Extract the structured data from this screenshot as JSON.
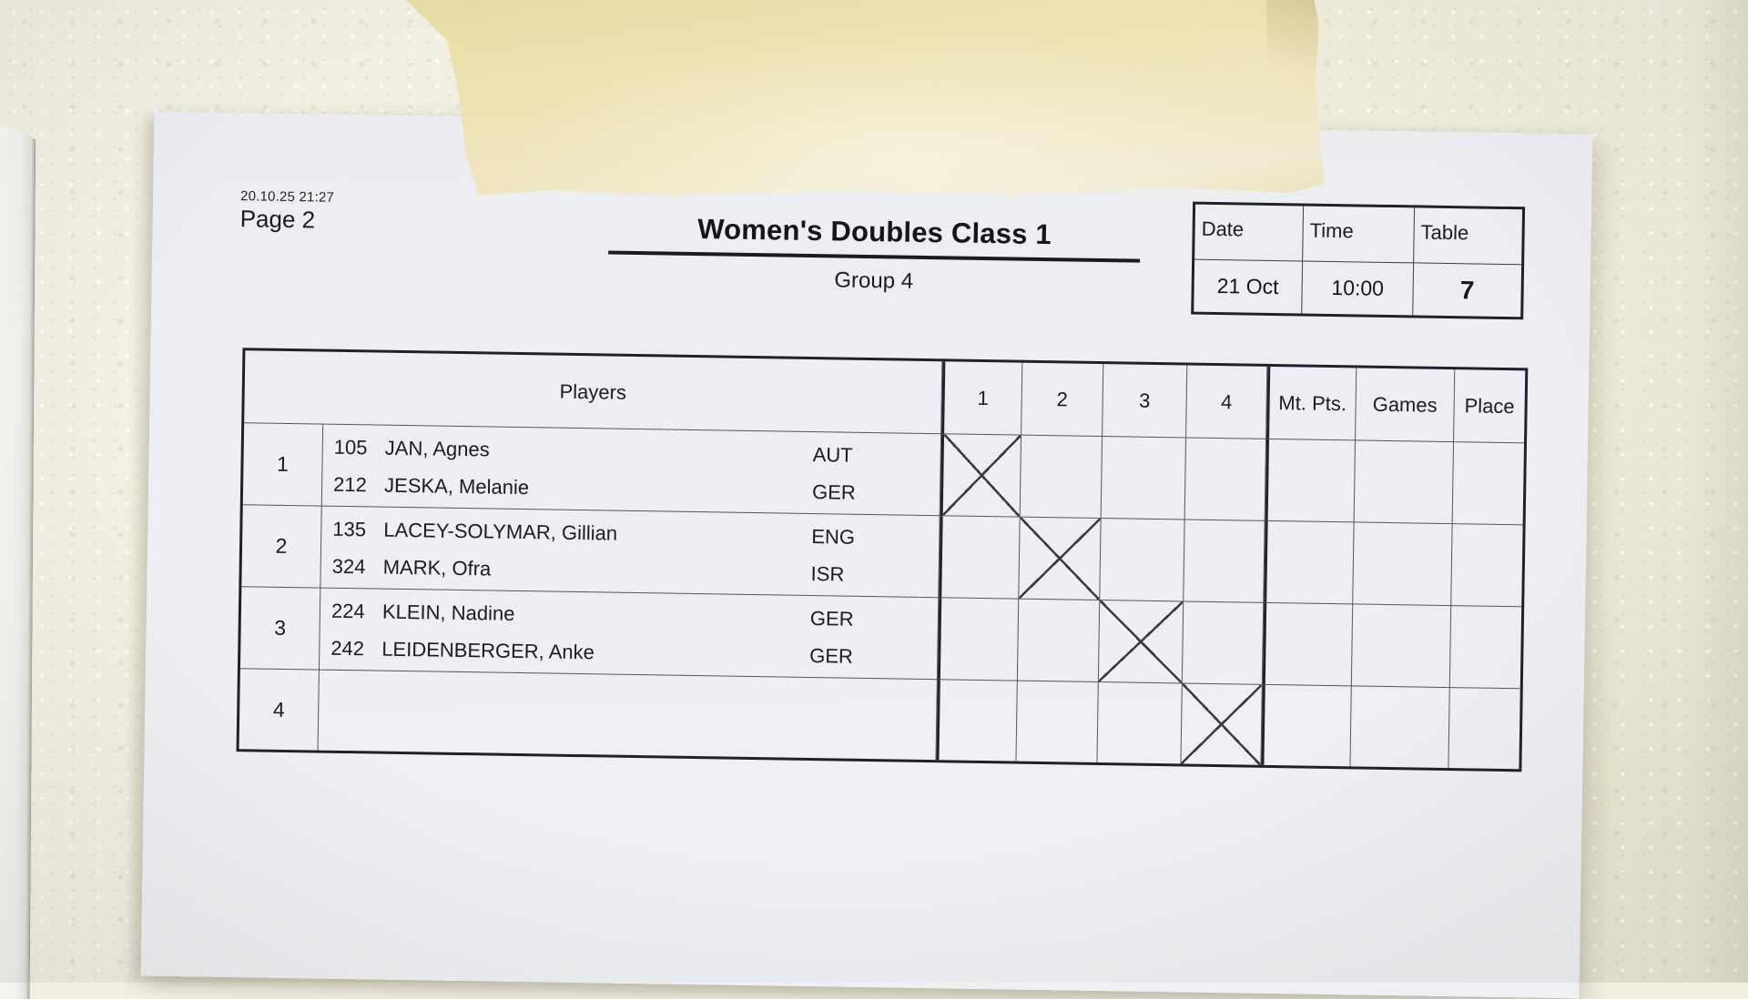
{
  "sheet": {
    "printed_datetime": "20.10.25 21:27",
    "page_label": "Page 2",
    "title": "Women's Doubles Class 1",
    "group": "Group 4"
  },
  "info_box": {
    "date_label": "Date",
    "time_label": "Time",
    "table_label": "Table",
    "date_value": "21 Oct",
    "time_value": "10:00",
    "table_value": "7"
  },
  "results_table": {
    "players_header": "Players",
    "round_headers": [
      "1",
      "2",
      "3",
      "4"
    ],
    "stat_headers": [
      "Mt. Pts.",
      "Games",
      "Place"
    ],
    "rows": [
      {
        "label": "1",
        "crossed_round": "1",
        "players": [
          {
            "num": "105",
            "name": "JAN, Agnes",
            "nat": "AUT"
          },
          {
            "num": "212",
            "name": "JESKA, Melanie",
            "nat": "GER"
          }
        ]
      },
      {
        "label": "2",
        "crossed_round": "2",
        "players": [
          {
            "num": "135",
            "name": "LACEY-SOLYMAR, Gillian",
            "nat": "ENG"
          },
          {
            "num": "324",
            "name": "MARK, Ofra",
            "nat": "ISR"
          }
        ]
      },
      {
        "label": "3",
        "crossed_round": "3",
        "players": [
          {
            "num": "224",
            "name": "KLEIN, Nadine",
            "nat": "GER"
          },
          {
            "num": "242",
            "name": "LEIDENBERGER, Anke",
            "nat": "GER"
          }
        ]
      },
      {
        "label": "4",
        "crossed_round": "4",
        "players": []
      }
    ]
  },
  "colors": {
    "paper": "#edeff3",
    "wall": "#f2f0e3",
    "tape": "#ece1ae",
    "table_line": "#23232d",
    "text": "#17171f"
  }
}
